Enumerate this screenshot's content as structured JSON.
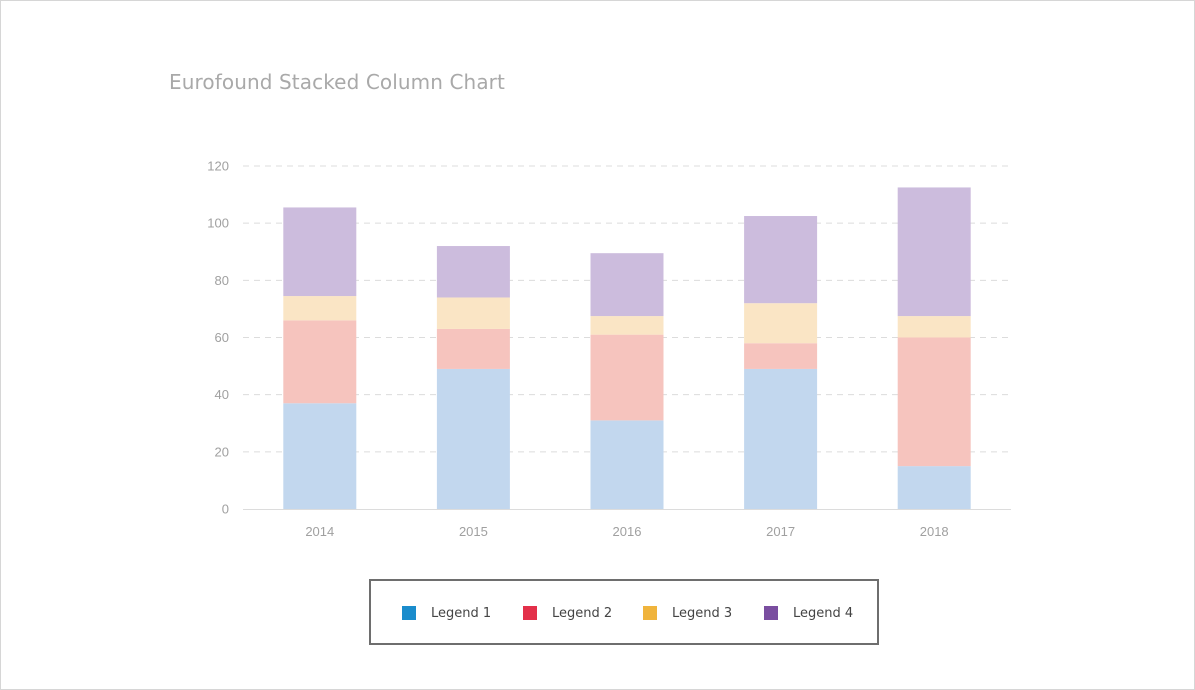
{
  "chart_data": {
    "type": "bar",
    "stacked": true,
    "title": "Eurofound Stacked Column Chart",
    "xlabel": "",
    "ylabel": "",
    "categories": [
      "2014",
      "2015",
      "2016",
      "2017",
      "2018"
    ],
    "ylim": [
      0,
      120
    ],
    "yticks": [
      0,
      20,
      40,
      60,
      80,
      100,
      120
    ],
    "grid": true,
    "legend_position": "bottom",
    "series": [
      {
        "name": "Legend 1",
        "color": "#c2d7ee",
        "legend_color": "#1a8ccc",
        "values": [
          37,
          49,
          31,
          49,
          15
        ]
      },
      {
        "name": "Legend 2",
        "color": "#f6c4be",
        "legend_color": "#e3304a",
        "values": [
          29,
          14,
          30,
          9,
          45
        ]
      },
      {
        "name": "Legend 3",
        "color": "#fae5c5",
        "legend_color": "#f0b43c",
        "values": [
          8.5,
          11,
          6.5,
          14,
          7.5
        ]
      },
      {
        "name": "Legend 4",
        "color": "#ccbcdd",
        "legend_color": "#7a4ea0",
        "values": [
          31,
          18,
          22,
          30.5,
          45
        ]
      }
    ]
  }
}
